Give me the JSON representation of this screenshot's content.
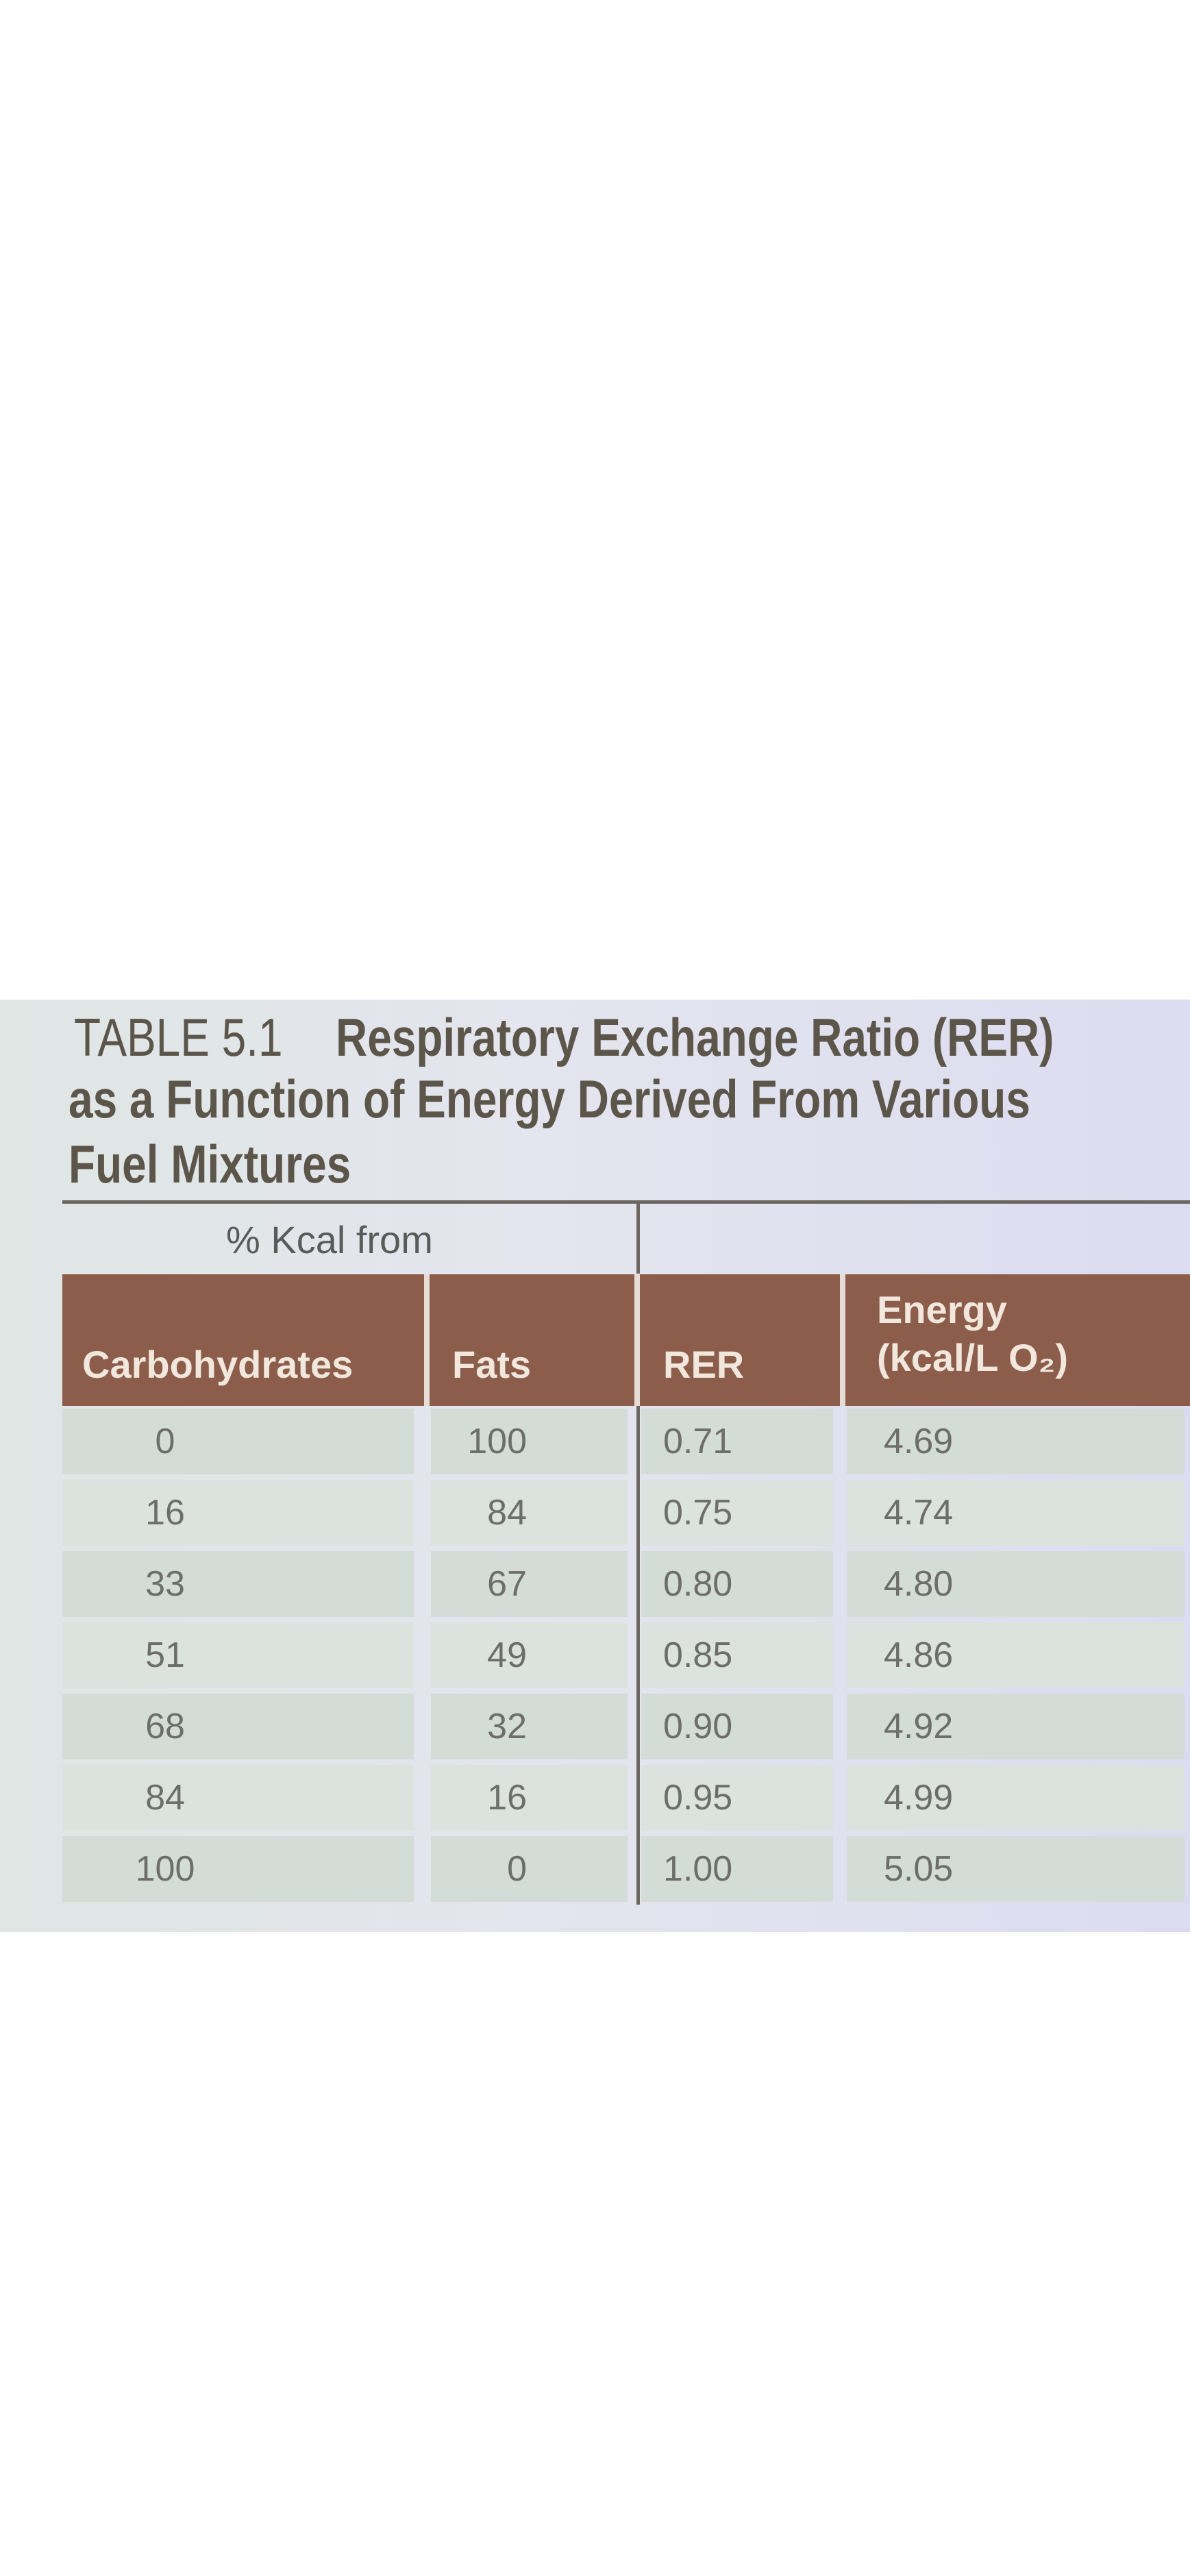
{
  "table_label": "TABLE 5.1",
  "title_lines": [
    "Respiratory Exchange Ratio (RER)",
    "as a Function of Energy Derived From Various",
    "Fuel Mixtures"
  ],
  "table": {
    "group_header": "% Kcal from",
    "columns": [
      [
        "Carbohydrates"
      ],
      [
        "Fats"
      ],
      [
        "RER"
      ],
      [
        "Energy",
        "(kcal/L O₂)"
      ]
    ],
    "rows": [
      [
        "0",
        "100",
        "0.71",
        "4.69"
      ],
      [
        "16",
        "84",
        "0.75",
        "4.74"
      ],
      [
        "33",
        "67",
        "0.80",
        "4.80"
      ],
      [
        "51",
        "49",
        "0.85",
        "4.86"
      ],
      [
        "68",
        "32",
        "0.90",
        "4.92"
      ],
      [
        "84",
        "16",
        "0.95",
        "4.99"
      ],
      [
        "100",
        "0",
        "1.00",
        "5.05"
      ]
    ]
  }
}
